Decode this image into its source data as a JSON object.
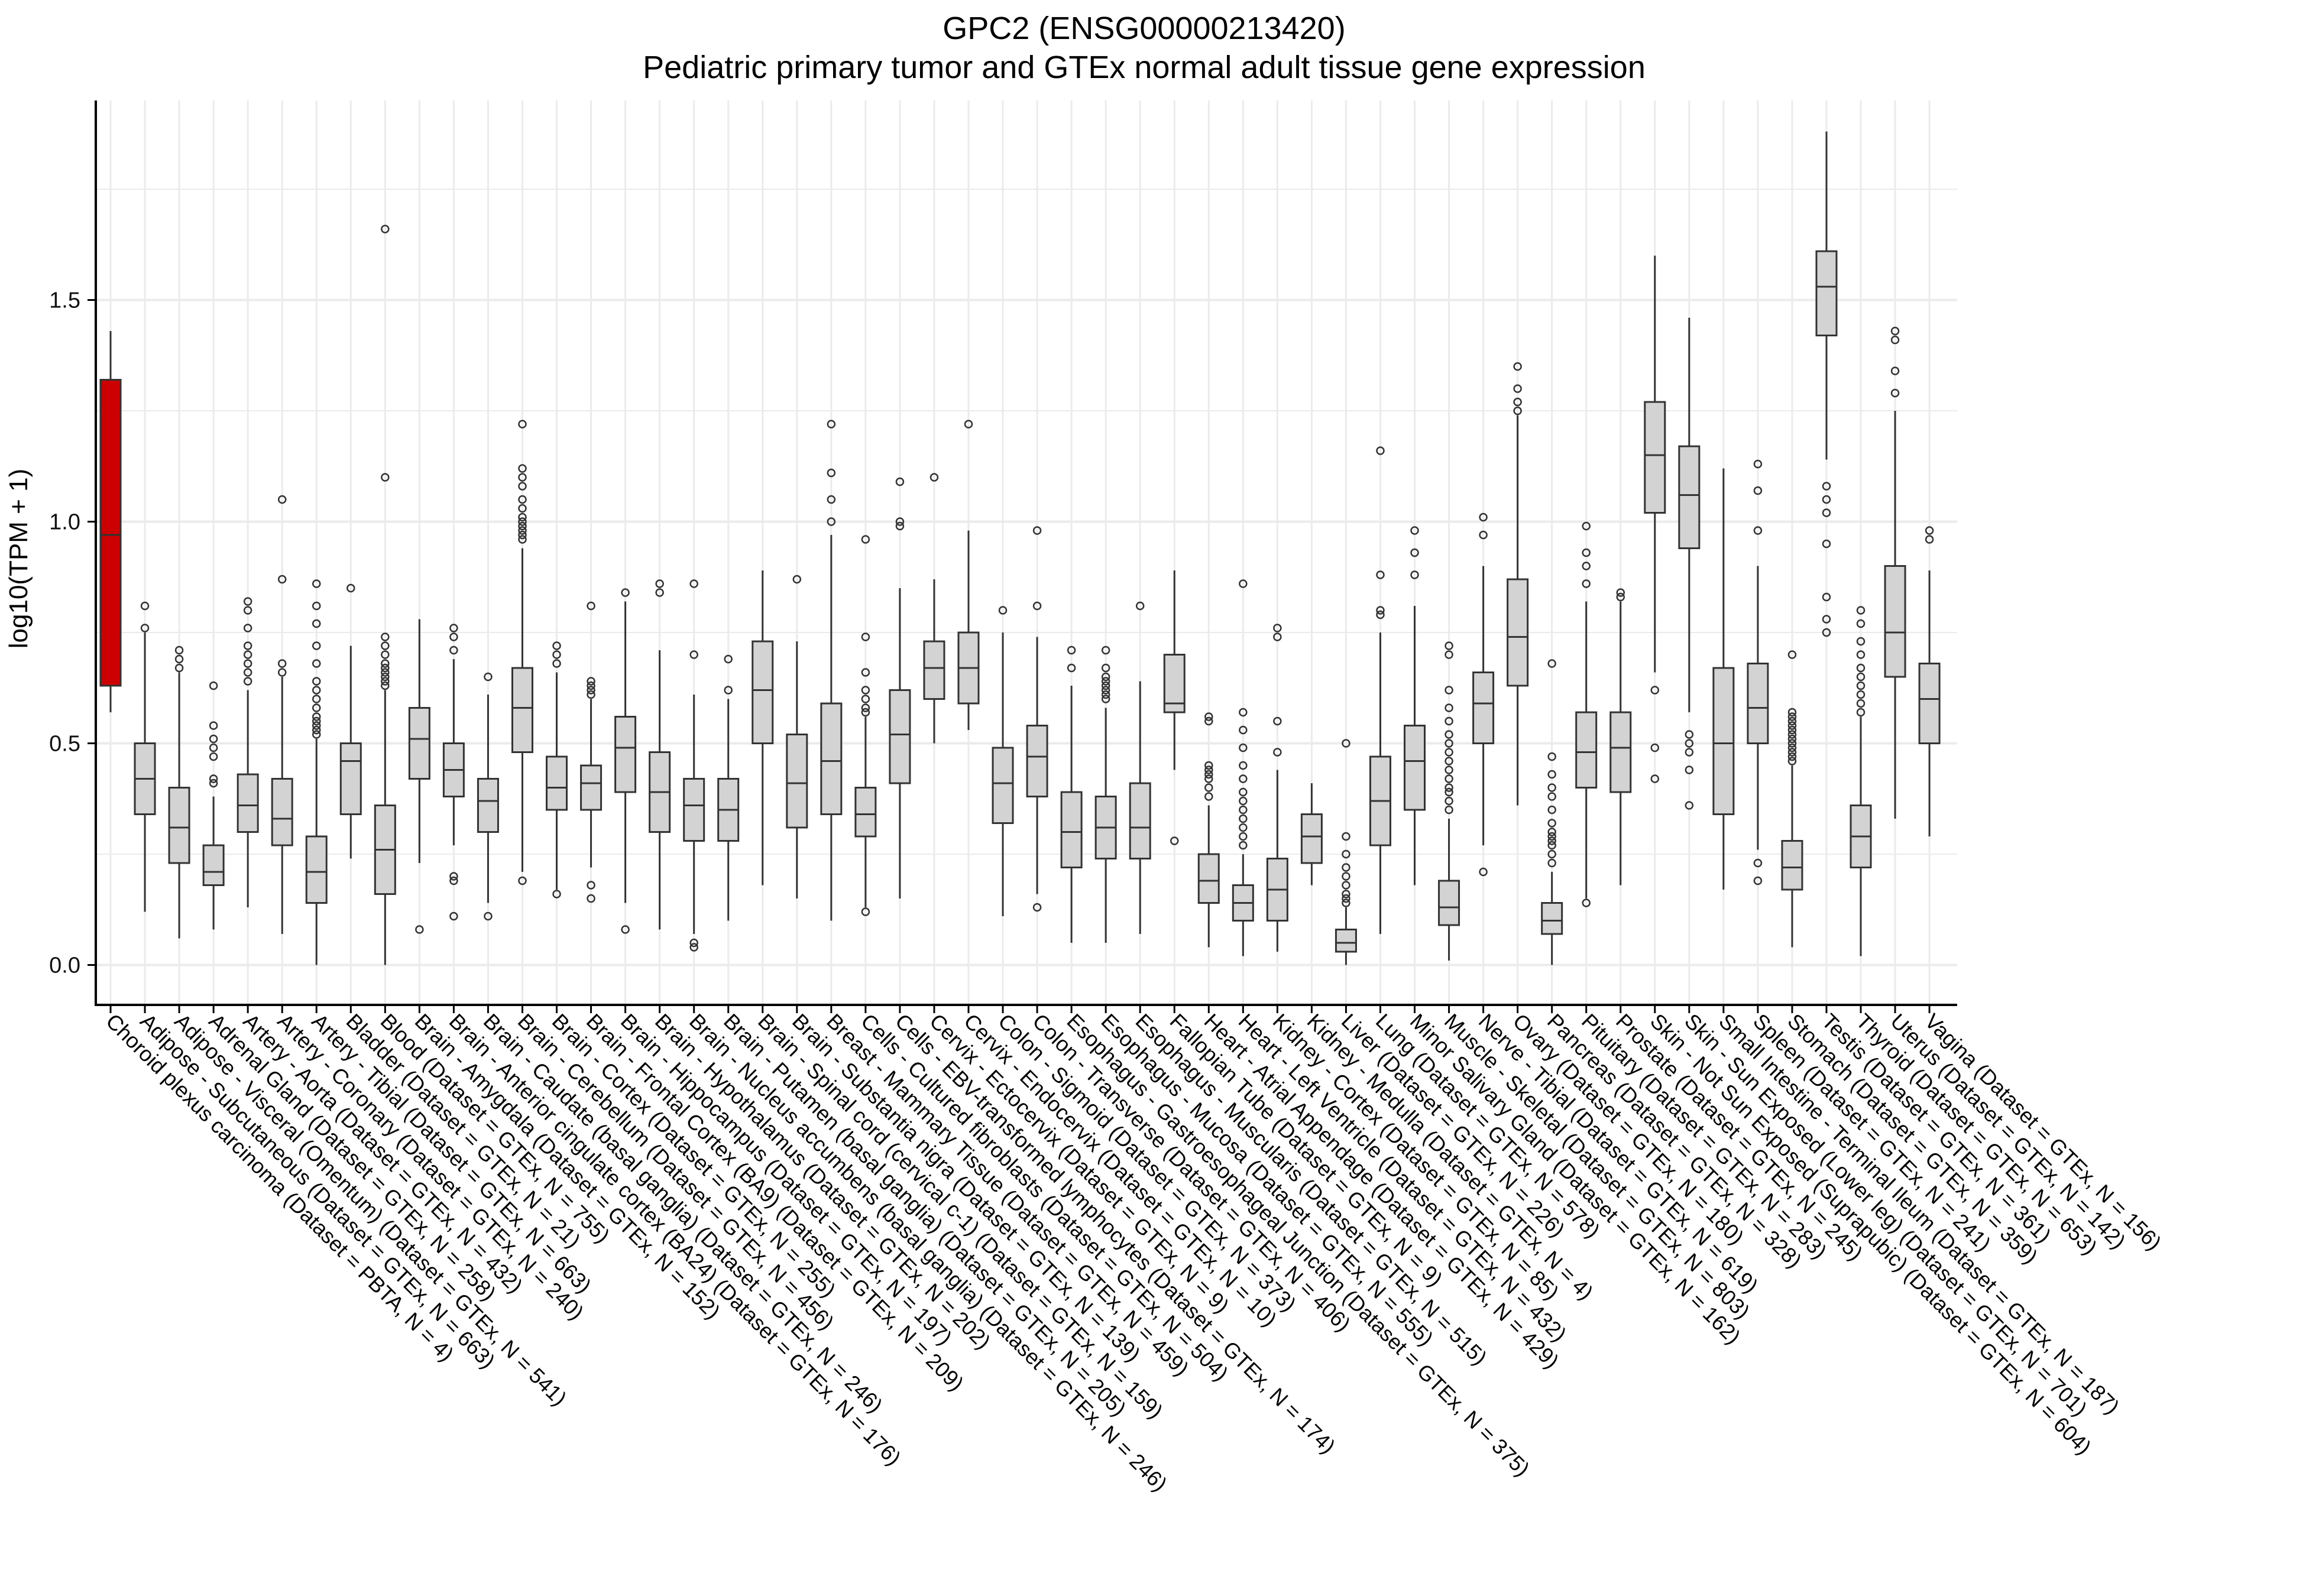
{
  "chart_data": {
    "type": "boxplot",
    "title": "GPC2 (ENSG00000213420)",
    "subtitle": "Pediatric primary tumor and GTEx normal adult tissue gene expression",
    "xlabel": "",
    "ylabel": "log10(TPM + 1)",
    "ylim": [
      -0.09,
      1.95
    ],
    "yticks": [
      0.0,
      0.5,
      1.0,
      1.5
    ],
    "ytick_labels": [
      "0.0",
      "0.5",
      "1.0",
      "1.5"
    ],
    "grid": true,
    "colors": {
      "highlight": "#cc0000",
      "box": "#d3d3d3",
      "grid": "#ebebeb"
    },
    "categories": [
      "Choroid plexus carcinoma (Dataset = PBTA, N = 4)",
      "Adipose - Subcutaneous (Dataset = GTEx, N = 663)",
      "Adipose - Visceral (Omentum) (Dataset = GTEx, N = 541)",
      "Adrenal Gland (Dataset = GTEx, N = 258)",
      "Artery - Aorta (Dataset = GTEx, N = 432)",
      "Artery - Coronary (Dataset = GTEx, N = 240)",
      "Artery - Tibial (Dataset = GTEx, N = 663)",
      "Bladder (Dataset = GTEx, N = 21)",
      "Blood (Dataset = GTEx, N = 755)",
      "Brain - Amygdala (Dataset = GTEx, N = 152)",
      "Brain - Anterior cingulate cortex (BA24) (Dataset = GTEx, N = 176)",
      "Brain - Caudate (basal ganglia) (Dataset = GTEx, N = 246)",
      "Brain - Cerebellum (Dataset = GTEx, N = 456)",
      "Brain - Cortex (Dataset = GTEx, N = 255)",
      "Brain - Frontal Cortex (BA9) (Dataset = GTEx, N = 209)",
      "Brain - Hippocampus (Dataset = GTEx, N = 197)",
      "Brain - Hypothalamus (Dataset = GTEx, N = 202)",
      "Brain - Nucleus accumbens (basal ganglia) (Dataset = GTEx, N = 246)",
      "Brain - Putamen (basal ganglia) (Dataset = GTEx, N = 205)",
      "Brain - Spinal cord (cervical c-1) (Dataset = GTEx, N = 159)",
      "Brain - Substantia nigra (Dataset = GTEx, N = 139)",
      "Breast - Mammary Tissue (Dataset = GTEx, N = 459)",
      "Cells - Cultured fibroblasts (Dataset = GTEx, N = 504)",
      "Cells - EBV-transformed lymphocytes (Dataset = GTEx, N = 174)",
      "Cervix - Ectocervix (Dataset = GTEx, N = 9)",
      "Cervix - Endocervix (Dataset = GTEx, N = 10)",
      "Colon - Sigmoid (Dataset = GTEx, N = 373)",
      "Colon - Transverse (Dataset = GTEx, N = 406)",
      "Esophagus - Gastroesophageal Junction (Dataset = GTEx, N = 375)",
      "Esophagus - Mucosa (Dataset = GTEx, N = 555)",
      "Esophagus - Muscularis (Dataset = GTEx, N = 515)",
      "Fallopian Tube (Dataset = GTEx, N = 9)",
      "Heart - Atrial Appendage (Dataset = GTEx, N = 429)",
      "Heart - Left Ventricle (Dataset = GTEx, N = 432)",
      "Kidney - Cortex (Dataset = GTEx, N = 85)",
      "Kidney - Medulla (Dataset = GTEx, N = 4)",
      "Liver (Dataset = GTEx, N = 226)",
      "Lung (Dataset = GTEx, N = 578)",
      "Minor Salivary Gland (Dataset = GTEx, N = 162)",
      "Muscle - Skeletal (Dataset = GTEx, N = 803)",
      "Nerve - Tibial (Dataset = GTEx, N = 619)",
      "Ovary (Dataset = GTEx, N = 180)",
      "Pancreas (Dataset = GTEx, N = 328)",
      "Pituitary (Dataset = GTEx, N = 283)",
      "Prostate (Dataset = GTEx, N = 245)",
      "Skin - Not Sun Exposed (Suprapubic) (Dataset = GTEx, N = 604)",
      "Skin - Sun Exposed (Lower leg) (Dataset = GTEx, N = 701)",
      "Small Intestine - Terminal Ileum (Dataset = GTEx, N = 187)",
      "Spleen (Dataset = GTEx, N = 241)",
      "Stomach (Dataset = GTEx, N = 359)",
      "Testis (Dataset = GTEx, N = 361)",
      "Thyroid (Dataset = GTEx, N = 653)",
      "Uterus (Dataset = GTEx, N = 142)",
      "Vagina (Dataset = GTEx, N = 156)"
    ],
    "series": [
      {
        "name": "Choroid plexus carcinoma",
        "highlight": true,
        "q1": 0.63,
        "median": 0.97,
        "q3": 1.32,
        "whisker_low": 0.57,
        "whisker_high": 1.43,
        "outliers": []
      },
      {
        "name": "Adipose - Subcutaneous",
        "q1": 0.34,
        "median": 0.42,
        "q3": 0.5,
        "whisker_low": 0.12,
        "whisker_high": 0.75,
        "outliers": [
          0.76,
          0.81
        ]
      },
      {
        "name": "Adipose - Visceral (Omentum)",
        "q1": 0.23,
        "median": 0.31,
        "q3": 0.4,
        "whisker_low": 0.06,
        "whisker_high": 0.66,
        "outliers": [
          0.67,
          0.69,
          0.71
        ]
      },
      {
        "name": "Adrenal Gland",
        "q1": 0.18,
        "median": 0.21,
        "q3": 0.27,
        "whisker_low": 0.08,
        "whisker_high": 0.38,
        "outliers": [
          0.41,
          0.42,
          0.47,
          0.49,
          0.51,
          0.54,
          0.63
        ]
      },
      {
        "name": "Artery - Aorta",
        "q1": 0.3,
        "median": 0.36,
        "q3": 0.43,
        "whisker_low": 0.13,
        "whisker_high": 0.62,
        "outliers": [
          0.64,
          0.66,
          0.68,
          0.7,
          0.72,
          0.76,
          0.8,
          0.82
        ]
      },
      {
        "name": "Artery - Coronary",
        "q1": 0.27,
        "median": 0.33,
        "q3": 0.42,
        "whisker_low": 0.07,
        "whisker_high": 0.65,
        "outliers": [
          0.66,
          0.68,
          0.87,
          1.05
        ]
      },
      {
        "name": "Artery - Tibial",
        "q1": 0.14,
        "median": 0.21,
        "q3": 0.29,
        "whisker_low": 0.0,
        "whisker_high": 0.51,
        "outliers": [
          0.52,
          0.53,
          0.54,
          0.55,
          0.56,
          0.58,
          0.6,
          0.62,
          0.64,
          0.68,
          0.72,
          0.77,
          0.81,
          0.86
        ]
      },
      {
        "name": "Bladder",
        "q1": 0.34,
        "median": 0.46,
        "q3": 0.5,
        "whisker_low": 0.24,
        "whisker_high": 0.72,
        "outliers": [
          0.85
        ]
      },
      {
        "name": "Blood",
        "q1": 0.16,
        "median": 0.26,
        "q3": 0.36,
        "whisker_low": 0.0,
        "whisker_high": 0.62,
        "outliers": [
          0.63,
          0.64,
          0.65,
          0.66,
          0.67,
          0.68,
          0.7,
          0.72,
          0.74,
          1.1,
          1.66
        ]
      },
      {
        "name": "Brain - Amygdala",
        "q1": 0.42,
        "median": 0.51,
        "q3": 0.58,
        "whisker_low": 0.23,
        "whisker_high": 0.78,
        "outliers": [
          0.08
        ]
      },
      {
        "name": "Brain - Anterior cingulate cortex (BA24)",
        "q1": 0.38,
        "median": 0.44,
        "q3": 0.5,
        "whisker_low": 0.27,
        "whisker_high": 0.69,
        "outliers": [
          0.11,
          0.19,
          0.2,
          0.71,
          0.74,
          0.76
        ]
      },
      {
        "name": "Brain - Caudate (basal ganglia)",
        "q1": 0.3,
        "median": 0.37,
        "q3": 0.42,
        "whisker_low": 0.14,
        "whisker_high": 0.61,
        "outliers": [
          0.11,
          0.65
        ]
      },
      {
        "name": "Brain - Cerebellum",
        "q1": 0.48,
        "median": 0.58,
        "q3": 0.67,
        "whisker_low": 0.21,
        "whisker_high": 0.94,
        "outliers": [
          0.19,
          0.96,
          0.97,
          0.98,
          0.99,
          1.0,
          1.01,
          1.03,
          1.05,
          1.08,
          1.1,
          1.12,
          1.22
        ]
      },
      {
        "name": "Brain - Cortex",
        "q1": 0.35,
        "median": 0.4,
        "q3": 0.47,
        "whisker_low": 0.17,
        "whisker_high": 0.66,
        "outliers": [
          0.16,
          0.68,
          0.7,
          0.72
        ]
      },
      {
        "name": "Brain - Frontal Cortex (BA9)",
        "q1": 0.35,
        "median": 0.41,
        "q3": 0.45,
        "whisker_low": 0.22,
        "whisker_high": 0.6,
        "outliers": [
          0.15,
          0.18,
          0.61,
          0.62,
          0.63,
          0.64,
          0.81
        ]
      },
      {
        "name": "Brain - Hippocampus",
        "q1": 0.39,
        "median": 0.49,
        "q3": 0.56,
        "whisker_low": 0.14,
        "whisker_high": 0.82,
        "outliers": [
          0.08,
          0.84
        ]
      },
      {
        "name": "Brain - Hypothalamus",
        "q1": 0.3,
        "median": 0.39,
        "q3": 0.48,
        "whisker_low": 0.08,
        "whisker_high": 0.71,
        "outliers": [
          0.84,
          0.86
        ]
      },
      {
        "name": "Brain - Nucleus accumbens (basal ganglia)",
        "q1": 0.28,
        "median": 0.36,
        "q3": 0.42,
        "whisker_low": 0.07,
        "whisker_high": 0.61,
        "outliers": [
          0.04,
          0.05,
          0.7,
          0.86
        ]
      },
      {
        "name": "Brain - Putamen (basal ganglia)",
        "q1": 0.28,
        "median": 0.35,
        "q3": 0.42,
        "whisker_low": 0.1,
        "whisker_high": 0.6,
        "outliers": [
          0.62,
          0.69
        ]
      },
      {
        "name": "Brain - Spinal cord (cervical c-1)",
        "q1": 0.5,
        "median": 0.62,
        "q3": 0.73,
        "whisker_low": 0.18,
        "whisker_high": 0.89,
        "outliers": []
      },
      {
        "name": "Brain - Substantia nigra",
        "q1": 0.31,
        "median": 0.41,
        "q3": 0.52,
        "whisker_low": 0.15,
        "whisker_high": 0.73,
        "outliers": [
          0.87
        ]
      },
      {
        "name": "Breast - Mammary Tissue",
        "q1": 0.34,
        "median": 0.46,
        "q3": 0.59,
        "whisker_low": 0.1,
        "whisker_high": 0.97,
        "outliers": [
          1.0,
          1.05,
          1.11,
          1.22
        ]
      },
      {
        "name": "Cells - Cultured fibroblasts",
        "q1": 0.29,
        "median": 0.34,
        "q3": 0.4,
        "whisker_low": 0.13,
        "whisker_high": 0.56,
        "outliers": [
          0.12,
          0.57,
          0.58,
          0.6,
          0.62,
          0.66,
          0.74,
          0.96
        ]
      },
      {
        "name": "Cells - EBV-transformed lymphocytes",
        "q1": 0.41,
        "median": 0.52,
        "q3": 0.62,
        "whisker_low": 0.15,
        "whisker_high": 0.85,
        "outliers": [
          0.99,
          1.0,
          1.09
        ]
      },
      {
        "name": "Cervix - Ectocervix",
        "q1": 0.6,
        "median": 0.67,
        "q3": 0.73,
        "whisker_low": 0.5,
        "whisker_high": 0.87,
        "outliers": [
          1.1
        ]
      },
      {
        "name": "Cervix - Endocervix",
        "q1": 0.59,
        "median": 0.67,
        "q3": 0.75,
        "whisker_low": 0.53,
        "whisker_high": 0.98,
        "outliers": [
          1.22
        ]
      },
      {
        "name": "Colon - Sigmoid",
        "q1": 0.32,
        "median": 0.41,
        "q3": 0.49,
        "whisker_low": 0.11,
        "whisker_high": 0.75,
        "outliers": [
          0.8
        ]
      },
      {
        "name": "Colon - Transverse",
        "q1": 0.38,
        "median": 0.47,
        "q3": 0.54,
        "whisker_low": 0.16,
        "whisker_high": 0.74,
        "outliers": [
          0.13,
          0.81,
          0.98
        ]
      },
      {
        "name": "Esophagus - Gastroesophageal Junction",
        "q1": 0.22,
        "median": 0.3,
        "q3": 0.39,
        "whisker_low": 0.05,
        "whisker_high": 0.63,
        "outliers": [
          0.67,
          0.71
        ]
      },
      {
        "name": "Esophagus - Mucosa",
        "q1": 0.24,
        "median": 0.31,
        "q3": 0.38,
        "whisker_low": 0.05,
        "whisker_high": 0.58,
        "outliers": [
          0.6,
          0.61,
          0.62,
          0.63,
          0.64,
          0.65,
          0.67,
          0.71
        ]
      },
      {
        "name": "Esophagus - Muscularis",
        "q1": 0.24,
        "median": 0.31,
        "q3": 0.41,
        "whisker_low": 0.07,
        "whisker_high": 0.64,
        "outliers": [
          0.81
        ]
      },
      {
        "name": "Fallopian Tube",
        "q1": 0.57,
        "median": 0.59,
        "q3": 0.7,
        "whisker_low": 0.44,
        "whisker_high": 0.89,
        "outliers": [
          0.28
        ]
      },
      {
        "name": "Heart - Atrial Appendage",
        "q1": 0.14,
        "median": 0.19,
        "q3": 0.25,
        "whisker_low": 0.04,
        "whisker_high": 0.36,
        "outliers": [
          0.38,
          0.4,
          0.42,
          0.43,
          0.44,
          0.45,
          0.55,
          0.56
        ]
      },
      {
        "name": "Heart - Left Ventricle",
        "q1": 0.1,
        "median": 0.14,
        "q3": 0.18,
        "whisker_low": 0.02,
        "whisker_high": 0.25,
        "outliers": [
          0.27,
          0.29,
          0.31,
          0.33,
          0.35,
          0.37,
          0.39,
          0.42,
          0.45,
          0.49,
          0.53,
          0.57,
          0.86
        ]
      },
      {
        "name": "Kidney - Cortex",
        "q1": 0.1,
        "median": 0.17,
        "q3": 0.24,
        "whisker_low": 0.03,
        "whisker_high": 0.44,
        "outliers": [
          0.48,
          0.55,
          0.74,
          0.76
        ]
      },
      {
        "name": "Kidney - Medulla",
        "q1": 0.23,
        "median": 0.29,
        "q3": 0.34,
        "whisker_low": 0.18,
        "whisker_high": 0.41,
        "outliers": []
      },
      {
        "name": "Liver",
        "q1": 0.03,
        "median": 0.05,
        "q3": 0.08,
        "whisker_low": 0.0,
        "whisker_high": 0.13,
        "outliers": [
          0.14,
          0.15,
          0.16,
          0.18,
          0.2,
          0.22,
          0.25,
          0.29,
          0.5
        ]
      },
      {
        "name": "Lung",
        "q1": 0.27,
        "median": 0.37,
        "q3": 0.47,
        "whisker_low": 0.07,
        "whisker_high": 0.75,
        "outliers": [
          0.79,
          0.8,
          0.88,
          1.16
        ]
      },
      {
        "name": "Minor Salivary Gland",
        "q1": 0.35,
        "median": 0.46,
        "q3": 0.54,
        "whisker_low": 0.18,
        "whisker_high": 0.81,
        "outliers": [
          0.88,
          0.93,
          0.98
        ]
      },
      {
        "name": "Muscle - Skeletal",
        "q1": 0.09,
        "median": 0.13,
        "q3": 0.19,
        "whisker_low": 0.01,
        "whisker_high": 0.33,
        "outliers": [
          0.35,
          0.37,
          0.39,
          0.4,
          0.42,
          0.44,
          0.46,
          0.48,
          0.5,
          0.52,
          0.55,
          0.58,
          0.62,
          0.7,
          0.72
        ]
      },
      {
        "name": "Nerve - Tibial",
        "q1": 0.5,
        "median": 0.59,
        "q3": 0.66,
        "whisker_low": 0.27,
        "whisker_high": 0.9,
        "outliers": [
          0.21,
          0.97,
          1.01
        ]
      },
      {
        "name": "Ovary",
        "q1": 0.63,
        "median": 0.74,
        "q3": 0.87,
        "whisker_low": 0.36,
        "whisker_high": 1.24,
        "outliers": [
          1.25,
          1.27,
          1.3,
          1.35
        ]
      },
      {
        "name": "Pancreas",
        "q1": 0.07,
        "median": 0.1,
        "q3": 0.14,
        "whisker_low": 0.0,
        "whisker_high": 0.21,
        "outliers": [
          0.23,
          0.25,
          0.27,
          0.28,
          0.29,
          0.3,
          0.32,
          0.35,
          0.38,
          0.4,
          0.43,
          0.47,
          0.68
        ]
      },
      {
        "name": "Pituitary",
        "q1": 0.4,
        "median": 0.48,
        "q3": 0.57,
        "whisker_low": 0.15,
        "whisker_high": 0.82,
        "outliers": [
          0.14,
          0.86,
          0.9,
          0.93,
          0.99
        ]
      },
      {
        "name": "Prostate",
        "q1": 0.39,
        "median": 0.49,
        "q3": 0.57,
        "whisker_low": 0.18,
        "whisker_high": 0.82,
        "outliers": [
          0.83,
          0.84
        ]
      },
      {
        "name": "Skin - Not Sun Exposed (Suprapubic)",
        "q1": 1.02,
        "median": 1.15,
        "q3": 1.27,
        "whisker_low": 0.66,
        "whisker_high": 1.6,
        "outliers": [
          0.42,
          0.49,
          0.62
        ]
      },
      {
        "name": "Skin - Sun Exposed (Lower leg)",
        "q1": 0.94,
        "median": 1.06,
        "q3": 1.17,
        "whisker_low": 0.57,
        "whisker_high": 1.46,
        "outliers": [
          0.36,
          0.44,
          0.48,
          0.5,
          0.52
        ]
      },
      {
        "name": "Small Intestine - Terminal Ileum",
        "q1": 0.34,
        "median": 0.5,
        "q3": 0.67,
        "whisker_low": 0.17,
        "whisker_high": 1.12,
        "outliers": []
      },
      {
        "name": "Spleen",
        "q1": 0.5,
        "median": 0.58,
        "q3": 0.68,
        "whisker_low": 0.26,
        "whisker_high": 0.9,
        "outliers": [
          0.19,
          0.23,
          0.98,
          1.07,
          1.13
        ]
      },
      {
        "name": "Stomach",
        "q1": 0.17,
        "median": 0.22,
        "q3": 0.28,
        "whisker_low": 0.04,
        "whisker_high": 0.45,
        "outliers": [
          0.46,
          0.47,
          0.48,
          0.49,
          0.5,
          0.51,
          0.52,
          0.53,
          0.54,
          0.55,
          0.56,
          0.57,
          0.7
        ]
      },
      {
        "name": "Testis",
        "q1": 1.42,
        "median": 1.53,
        "q3": 1.61,
        "whisker_low": 1.14,
        "whisker_high": 1.88,
        "outliers": [
          0.75,
          0.78,
          0.83,
          0.95,
          1.02,
          1.05,
          1.08
        ]
      },
      {
        "name": "Thyroid",
        "q1": 0.22,
        "median": 0.29,
        "q3": 0.36,
        "whisker_low": 0.02,
        "whisker_high": 0.56,
        "outliers": [
          0.57,
          0.59,
          0.61,
          0.63,
          0.65,
          0.67,
          0.7,
          0.73,
          0.77,
          0.8
        ]
      },
      {
        "name": "Uterus",
        "q1": 0.65,
        "median": 0.75,
        "q3": 0.9,
        "whisker_low": 0.33,
        "whisker_high": 1.25,
        "outliers": [
          1.29,
          1.34,
          1.41,
          1.43
        ]
      },
      {
        "name": "Vagina",
        "q1": 0.5,
        "median": 0.6,
        "q3": 0.68,
        "whisker_low": 0.29,
        "whisker_high": 0.89,
        "outliers": [
          0.96,
          0.98
        ]
      }
    ]
  }
}
